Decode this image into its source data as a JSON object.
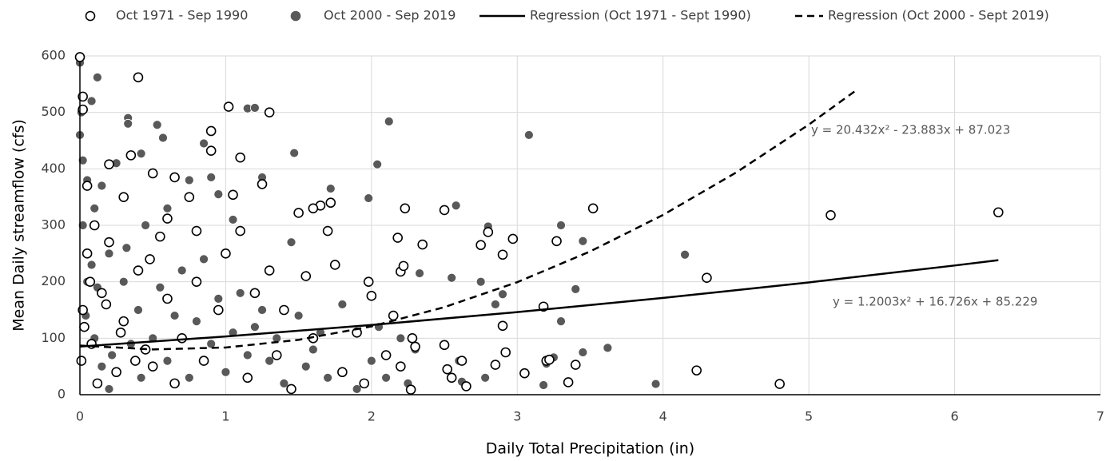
{
  "chart_data": {
    "type": "scatter",
    "x_label": "Daily Total Precipitation (in)",
    "y_label": "Mean Daily streamflow (cfs)",
    "xlim": [
      0,
      7
    ],
    "xticks": [
      0,
      1,
      2,
      3,
      4,
      5,
      6,
      7
    ],
    "ylim": [
      0,
      600
    ],
    "yticks": [
      0,
      100,
      200,
      300,
      400,
      500,
      600
    ],
    "grid": true,
    "legend": "top",
    "annotations": [
      "y = 20.432x² - 23.883x + 87.023",
      "y = 1.2003x² + 16.726x + 85.229"
    ],
    "series": [
      {
        "name": "Oct 1971 - Sep 1990",
        "kind": "points",
        "marker": "open",
        "color": "#000000",
        "x": [
          0,
          0.02,
          0.02,
          0.4,
          1.02,
          1.3,
          0.9,
          0.9,
          1.1,
          0.35,
          0.5,
          0.65,
          0.2,
          0.05,
          1.25,
          1.05,
          0.3,
          0.75,
          0.6,
          0.8,
          1.1,
          1.5,
          1.65,
          1.72,
          1.6,
          1.7,
          1.98,
          2.0,
          2.18,
          2.2,
          2.22,
          2.35,
          2.23,
          2.5,
          2.75,
          2.8,
          2.97,
          2.9,
          3.27,
          3.52,
          2.9,
          3.18,
          4.3,
          5.15,
          6.3,
          4.23,
          4.8,
          3.4,
          3.05,
          3.35,
          2.85,
          2.92,
          2.5,
          2.52,
          2.55,
          2.27,
          2.3,
          2.28,
          2.2,
          2.1,
          2.15,
          1.9,
          1.75,
          1.55,
          1.4,
          1.3,
          1.2,
          1.0,
          0.95,
          0.8,
          0.7,
          0.6,
          0.5,
          0.4,
          0.3,
          0.2,
          0.15,
          0.1,
          0.05,
          0.02,
          0.01,
          0.08,
          0.12,
          0.25,
          0.45,
          0.55,
          0.65,
          0.85,
          1.15,
          1.35,
          1.45,
          1.6,
          1.8,
          1.95,
          3.2,
          3.22,
          2.62,
          2.65,
          0.03,
          0.07,
          0.18,
          0.28,
          0.38,
          0.48
        ],
        "values": [
          598,
          528,
          505,
          562,
          510,
          500,
          467,
          432,
          420,
          424,
          392,
          385,
          408,
          370,
          373,
          354,
          350,
          350,
          312,
          290,
          290,
          322,
          335,
          340,
          330,
          290,
          200,
          175,
          278,
          218,
          228,
          266,
          330,
          327,
          265,
          288,
          276,
          248,
          272,
          330,
          122,
          156,
          207,
          318,
          323,
          43,
          19,
          53,
          38,
          22,
          53,
          75,
          88,
          45,
          30,
          9,
          85,
          100,
          50,
          70,
          140,
          110,
          230,
          210,
          150,
          220,
          180,
          250,
          150,
          200,
          100,
          170,
          50,
          220,
          130,
          270,
          180,
          300,
          250,
          150,
          60,
          90,
          20,
          40,
          80,
          280,
          20,
          60,
          30,
          70,
          10,
          100,
          40,
          20,
          60,
          62,
          60,
          15,
          120,
          200,
          160,
          110,
          60,
          240
        ]
      },
      {
        "name": "Oct 2000 - Sep 2019",
        "kind": "points",
        "marker": "filled",
        "color": "#595959",
        "x": [
          0,
          0.12,
          0.08,
          0.01,
          0,
          0.33,
          0.33,
          0.53,
          0.42,
          0.57,
          1.15,
          1.2,
          1.47,
          0.9,
          0.85,
          2.12,
          2.04,
          3.08,
          1.98,
          2.58,
          1.72,
          2.8,
          3.3,
          3.45,
          4.15,
          2.75,
          2.55,
          2.33,
          3.4,
          2.9,
          3.3,
          3.45,
          3.62,
          3.95,
          3.18,
          3.25,
          2.78,
          2.62,
          2.85,
          1.45,
          1.25,
          1.05,
          0.75,
          0.95,
          0.6,
          0.45,
          0.25,
          0.15,
          0.02,
          0.05,
          0.1,
          0.2,
          0.3,
          0.4,
          0.5,
          0.6,
          0.7,
          0.8,
          0.9,
          1.0,
          1.1,
          1.2,
          1.3,
          1.4,
          1.5,
          1.6,
          1.7,
          1.8,
          1.9,
          2.0,
          2.1,
          2.25,
          2.2,
          0.05,
          0.1,
          0.15,
          0.2,
          0.02,
          0.08,
          0.35,
          0.55,
          0.65,
          0.75,
          0.85,
          0.95,
          1.05,
          1.15,
          1.25,
          1.35,
          1.55,
          1.65,
          2.05,
          2.3,
          2.6,
          3.2,
          0.04,
          0.12,
          0.22,
          0.32,
          0.42
        ],
        "values": [
          588,
          562,
          520,
          500,
          460,
          490,
          480,
          478,
          427,
          455,
          507,
          508,
          428,
          385,
          445,
          484,
          408,
          460,
          348,
          335,
          365,
          298,
          300,
          272,
          248,
          200,
          207,
          215,
          187,
          178,
          130,
          75,
          83,
          19,
          17,
          66,
          30,
          23,
          160,
          270,
          385,
          310,
          380,
          355,
          330,
          300,
          410,
          370,
          415,
          380,
          330,
          250,
          200,
          150,
          100,
          60,
          220,
          130,
          90,
          40,
          180,
          120,
          60,
          20,
          140,
          80,
          30,
          160,
          10,
          60,
          30,
          20,
          100,
          200,
          100,
          50,
          10,
          300,
          230,
          90,
          190,
          140,
          30,
          240,
          170,
          110,
          70,
          150,
          100,
          50,
          110,
          120,
          80,
          60,
          55,
          140,
          190,
          70,
          260,
          30
        ]
      },
      {
        "name": "Regression (Oct 1971 - Sept 1990)",
        "kind": "line",
        "dash": "solid",
        "color": "#000000",
        "x": [
          0,
          1,
          2,
          3,
          4,
          5,
          6,
          6.3
        ],
        "values": [
          85.23,
          103.16,
          123.48,
          146.21,
          171.34,
          198.87,
          228.8,
          238.26
        ]
      },
      {
        "name": "Regression (Oct 2000 - Sept 2019)",
        "kind": "line",
        "dash": "dashed",
        "color": "#000000",
        "x": [
          0,
          0.5,
          1,
          1.5,
          2,
          2.5,
          3,
          3.5,
          4,
          4.5,
          5,
          5.32
        ],
        "values": [
          87.02,
          80.19,
          83.57,
          97.17,
          120.99,
          155.02,
          199.26,
          253.73,
          318.4,
          393.3,
          478.41,
          538.24
        ]
      }
    ]
  }
}
